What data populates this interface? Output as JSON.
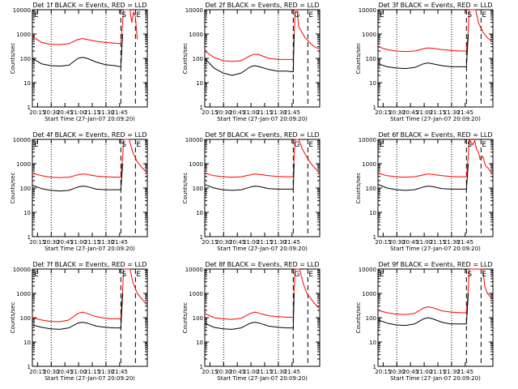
{
  "chart_data": [
    {
      "type": "line",
      "title": "Det 1f BLACK = Events, RED = LLD",
      "xlabel": "Start Time (27-Jan-07 20:09:20)",
      "ylabel": "Counts/sec",
      "yscale": "log",
      "ylim": [
        1,
        10000
      ],
      "y_ticks": [
        "1",
        "10",
        "100",
        "1000",
        "10000"
      ],
      "x_ticks": [
        "20:15",
        "20:30",
        "20:45",
        "21:00",
        "21:15",
        "21:30",
        "21:45"
      ],
      "x_range_min": [
        0,
        100
      ],
      "markers": [
        "E",
        "S",
        "E"
      ],
      "series": [
        {
          "color": "#000000",
          "x": [
            0,
            10,
            20,
            30,
            40,
            50,
            55,
            60,
            70,
            80,
            90,
            97,
            99
          ],
          "y": [
            100,
            60,
            50,
            48,
            52,
            100,
            110,
            100,
            70,
            55,
            50,
            45,
            1000
          ]
        },
        {
          "color": "#ff0000",
          "x": [
            0,
            10,
            20,
            30,
            40,
            50,
            55,
            60,
            70,
            80,
            90,
            97,
            99,
            99.8,
            101,
            107,
            109,
            111,
            113,
            115
          ],
          "y": [
            800,
            450,
            380,
            370,
            400,
            600,
            650,
            600,
            500,
            450,
            420,
            400,
            3000,
            10000,
            10000,
            10000,
            3000,
            8000,
            5000,
            600
          ]
        }
      ]
    },
    {
      "type": "line",
      "title": "Det 2f BLACK = Events, RED = LLD",
      "xlabel": "Start Time (27-Jan-07 20:09:20)",
      "ylabel": "Counts/sec",
      "yscale": "log",
      "ylim": [
        1,
        10000
      ],
      "y_ticks": [
        "1",
        "10",
        "100",
        "1000",
        "10000"
      ],
      "x_ticks": [
        "20:15",
        "20:30",
        "20:45",
        "21:00",
        "21:15",
        "21:30",
        "21:45"
      ],
      "markers": [
        "G",
        "E"
      ],
      "series": [
        {
          "color": "#000000",
          "x": [
            0,
            10,
            20,
            30,
            40,
            50,
            55,
            60,
            70,
            80,
            90,
            97,
            98
          ],
          "y": [
            100,
            40,
            25,
            20,
            25,
            45,
            50,
            45,
            35,
            30,
            30,
            28,
            1000
          ]
        },
        {
          "color": "#ff0000",
          "x": [
            0,
            10,
            20,
            30,
            40,
            50,
            55,
            60,
            70,
            80,
            90,
            97,
            98,
            99,
            101,
            103,
            105,
            110,
            115,
            120,
            125
          ],
          "y": [
            200,
            110,
            80,
            75,
            80,
            130,
            150,
            140,
            100,
            90,
            90,
            90,
            800,
            10000,
            10000,
            2000,
            1500,
            700,
            450,
            300,
            250
          ]
        }
      ]
    },
    {
      "type": "line",
      "title": "Det 3f BLACK = Events, RED = LLD",
      "xlabel": "Start Time (27-Jan-07 20:09:20)",
      "ylabel": "Counts/sec",
      "yscale": "log",
      "ylim": [
        1,
        10000
      ],
      "y_ticks": [
        "1",
        "10",
        "100",
        "1000",
        "10000"
      ],
      "x_ticks": [
        "20:15",
        "20:30",
        "20:45",
        "21:00",
        "21:15",
        "21:30",
        "21:45"
      ],
      "markers": [
        "E",
        "S",
        "E"
      ],
      "series": [
        {
          "color": "#000000",
          "x": [
            0,
            10,
            20,
            30,
            40,
            50,
            55,
            60,
            70,
            80,
            90,
            97,
            99
          ],
          "y": [
            60,
            45,
            40,
            38,
            42,
            60,
            65,
            60,
            50,
            45,
            45,
            45,
            1000
          ]
        },
        {
          "color": "#ff0000",
          "x": [
            0,
            10,
            20,
            30,
            40,
            50,
            55,
            60,
            70,
            80,
            90,
            97,
            99,
            100,
            107,
            110,
            115,
            120,
            125
          ],
          "y": [
            300,
            230,
            200,
            190,
            200,
            250,
            270,
            260,
            230,
            210,
            200,
            200,
            1500,
            10000,
            10000,
            3000,
            1200,
            700,
            500
          ]
        }
      ]
    },
    {
      "type": "line",
      "title": "Det 4f BLACK = Events, RED = LLD",
      "xlabel": "Start Time (27-Jan-07 20:09:20)",
      "ylabel": "Counts/sec",
      "yscale": "log",
      "ylim": [
        1,
        10000
      ],
      "y_ticks": [
        "1",
        "10",
        "100",
        "1000",
        "10000"
      ],
      "x_ticks": [
        "20:15",
        "20:30",
        "20:45",
        "21:00",
        "21:15",
        "21:30",
        "21:45"
      ],
      "markers": [
        "E",
        "S",
        "E"
      ],
      "series": [
        {
          "color": "#000000",
          "x": [
            0,
            10,
            20,
            30,
            40,
            50,
            55,
            60,
            70,
            80,
            90,
            97,
            99
          ],
          "y": [
            130,
            95,
            80,
            75,
            80,
            110,
            120,
            115,
            90,
            85,
            85,
            85,
            1000
          ]
        },
        {
          "color": "#ff0000",
          "x": [
            0,
            10,
            20,
            30,
            40,
            50,
            55,
            60,
            70,
            80,
            90,
            97,
            99,
            100,
            106,
            110,
            115,
            120,
            125
          ],
          "y": [
            400,
            320,
            280,
            270,
            280,
            350,
            380,
            360,
            310,
            290,
            280,
            280,
            2000,
            10000,
            10000,
            3000,
            1200,
            700,
            450
          ]
        }
      ]
    },
    {
      "type": "line",
      "title": "Det 5f BLACK = Events, RED = LLD",
      "xlabel": "Start Time (27-Jan-07 20:09:20)",
      "ylabel": "Counts/sec",
      "yscale": "log",
      "ylim": [
        1,
        10000
      ],
      "y_ticks": [
        "1",
        "10",
        "100",
        "1000",
        "10000"
      ],
      "x_ticks": [
        "20:15",
        "20:30",
        "20:45",
        "21:00",
        "21:15",
        "21:30",
        "21:45"
      ],
      "markers": [
        "G",
        "E"
      ],
      "series": [
        {
          "color": "#000000",
          "x": [
            0,
            10,
            20,
            30,
            40,
            50,
            55,
            60,
            70,
            80,
            90,
            97,
            98
          ],
          "y": [
            140,
            100,
            85,
            80,
            85,
            110,
            120,
            115,
            95,
            90,
            90,
            90,
            1000
          ]
        },
        {
          "color": "#ff0000",
          "x": [
            0,
            10,
            20,
            30,
            40,
            50,
            55,
            60,
            70,
            80,
            90,
            97,
            98,
            99,
            103,
            107,
            110,
            115,
            120,
            125
          ],
          "y": [
            400,
            320,
            290,
            280,
            290,
            350,
            380,
            360,
            320,
            300,
            290,
            290,
            2000,
            10000,
            10000,
            4000,
            2500,
            1200,
            700,
            450
          ]
        }
      ]
    },
    {
      "type": "line",
      "title": "Det 6f BLACK = Events, RED = LLD",
      "xlabel": "Start Time (27-Jan-07 20:09:20)",
      "ylabel": "Counts/sec",
      "yscale": "log",
      "ylim": [
        1,
        10000
      ],
      "y_ticks": [
        "1",
        "10",
        "100",
        "1000",
        "10000"
      ],
      "x_ticks": [
        "20:15",
        "20:30",
        "20:45",
        "21:00",
        "21:15",
        "21:30",
        "21:45"
      ],
      "markers": [
        "E",
        "S",
        "E"
      ],
      "series": [
        {
          "color": "#000000",
          "x": [
            0,
            10,
            20,
            30,
            40,
            50,
            55,
            60,
            70,
            80,
            90,
            97,
            99
          ],
          "y": [
            140,
            100,
            85,
            80,
            85,
            110,
            120,
            115,
            95,
            90,
            90,
            90,
            1000
          ]
        },
        {
          "color": "#ff0000",
          "x": [
            0,
            10,
            20,
            30,
            40,
            50,
            55,
            60,
            70,
            80,
            90,
            97,
            99,
            100,
            104,
            106,
            108,
            110,
            112,
            115,
            118,
            120,
            125
          ],
          "y": [
            400,
            320,
            290,
            280,
            290,
            350,
            380,
            360,
            320,
            300,
            290,
            290,
            2000,
            10000,
            6000,
            9000,
            4000,
            3000,
            1500,
            2000,
            800,
            700,
            400
          ]
        }
      ]
    },
    {
      "type": "line",
      "title": "Det 7f BLACK = Events, RED = LLD",
      "xlabel": "Start Time (27-Jan-07 20:09:20)",
      "ylabel": "Counts/sec",
      "yscale": "log",
      "ylim": [
        1,
        10000
      ],
      "y_ticks": [
        "1",
        "10",
        "100",
        "1000",
        "10000"
      ],
      "x_ticks": [
        "20:15",
        "20:30",
        "20:45",
        "21:00",
        "21:15",
        "21:30",
        "21:45"
      ],
      "markers": [
        "E",
        "S",
        "E"
      ],
      "series": [
        {
          "color": "#000000",
          "x": [
            0,
            10,
            20,
            30,
            40,
            50,
            55,
            60,
            70,
            80,
            90,
            97,
            99
          ],
          "y": [
            50,
            40,
            35,
            33,
            38,
            60,
            65,
            60,
            45,
            40,
            38,
            38,
            1000
          ]
        },
        {
          "color": "#ff0000",
          "x": [
            0,
            10,
            20,
            30,
            40,
            50,
            55,
            60,
            70,
            80,
            90,
            97,
            99,
            100,
            107,
            110,
            115,
            120,
            125
          ],
          "y": [
            100,
            80,
            70,
            68,
            80,
            150,
            170,
            150,
            110,
            95,
            90,
            90,
            1500,
            10000,
            10000,
            3000,
            1000,
            600,
            350
          ]
        }
      ]
    },
    {
      "type": "line",
      "title": "Det 8f BLACK = Events, RED = LLD",
      "xlabel": "Start Time (27-Jan-07 20:09:20)",
      "ylabel": "Counts/sec",
      "yscale": "log",
      "ylim": [
        1,
        10000
      ],
      "y_ticks": [
        "1",
        "10",
        "100",
        "1000",
        "10000"
      ],
      "x_ticks": [
        "20:15",
        "20:30",
        "20:45",
        "21:00",
        "21:15",
        "21:30",
        "21:45"
      ],
      "markers": [
        "G",
        "E"
      ],
      "series": [
        {
          "color": "#000000",
          "x": [
            0,
            10,
            20,
            30,
            40,
            50,
            55,
            60,
            70,
            80,
            90,
            97,
            98
          ],
          "y": [
            60,
            40,
            35,
            33,
            38,
            60,
            65,
            60,
            45,
            40,
            38,
            38,
            1000
          ]
        },
        {
          "color": "#ff0000",
          "x": [
            0,
            10,
            20,
            30,
            40,
            50,
            55,
            60,
            70,
            80,
            90,
            97,
            98,
            99,
            104,
            108,
            112,
            115,
            120,
            125
          ],
          "y": [
            150,
            100,
            90,
            85,
            95,
            150,
            170,
            150,
            120,
            110,
            105,
            105,
            1500,
            10000,
            10000,
            2500,
            1000,
            700,
            400,
            250
          ]
        }
      ]
    },
    {
      "type": "line",
      "title": "Det 9f BLACK = Events, RED = LLD",
      "xlabel": "Start Time (27-Jan-07 20:09:20)",
      "ylabel": "Counts/sec",
      "yscale": "log",
      "ylim": [
        1,
        10000
      ],
      "y_ticks": [
        "1",
        "10",
        "100",
        "1000",
        "10000"
      ],
      "x_ticks": [
        "20:15",
        "20:30",
        "20:45",
        "21:00",
        "21:15",
        "21:30",
        "21:45"
      ],
      "markers": [
        "E",
        "S",
        "E"
      ],
      "series": [
        {
          "color": "#000000",
          "x": [
            0,
            10,
            20,
            30,
            40,
            50,
            55,
            60,
            70,
            80,
            90,
            97,
            99
          ],
          "y": [
            80,
            60,
            50,
            48,
            55,
            90,
            100,
            90,
            65,
            55,
            55,
            55,
            1000
          ]
        },
        {
          "color": "#ff0000",
          "x": [
            0,
            10,
            20,
            30,
            40,
            50,
            55,
            60,
            70,
            80,
            90,
            97,
            99,
            100,
            107,
            115,
            117,
            120,
            125
          ],
          "y": [
            200,
            160,
            140,
            135,
            150,
            250,
            280,
            260,
            190,
            170,
            160,
            160,
            1500,
            10000,
            10000,
            10000,
            2000,
            1000,
            600
          ]
        }
      ]
    }
  ]
}
